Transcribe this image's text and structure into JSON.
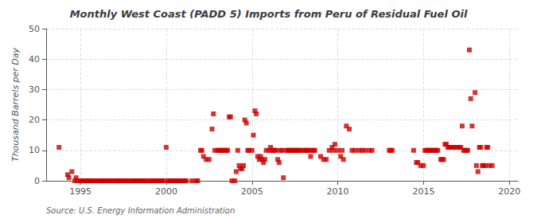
{
  "chart_data": {
    "type": "scatter",
    "title": "Monthly West Coast (PADD 5) Imports from Peru of Residual Fuel Oil",
    "ylabel": "Thousand Barrels per Day",
    "annotation": "Source: U.S. Energy Information Administration",
    "color": "#cc0000",
    "marker": "square",
    "grid": true,
    "xlim": [
      1993.0,
      2020.5
    ],
    "ylim": [
      0,
      50
    ],
    "xticks": [
      1995,
      2000,
      2005,
      2010,
      2015,
      2020
    ],
    "yticks": [
      0,
      10,
      20,
      30,
      40,
      50
    ],
    "x": [
      1993.75,
      1994.25,
      1994.33,
      1994.5,
      1994.67,
      1994.75,
      1994.83,
      1995.0,
      1995.08,
      1995.17,
      1995.25,
      1995.33,
      1995.42,
      1995.5,
      1995.58,
      1995.67,
      1995.75,
      1995.83,
      1996.0,
      1996.08,
      1996.17,
      1996.25,
      1996.33,
      1996.42,
      1996.5,
      1996.58,
      1996.67,
      1996.75,
      1996.83,
      1997.0,
      1997.08,
      1997.17,
      1997.25,
      1997.33,
      1997.42,
      1997.5,
      1997.58,
      1997.67,
      1997.75,
      1997.83,
      1998.0,
      1998.08,
      1998.17,
      1998.25,
      1998.33,
      1998.42,
      1998.5,
      1998.58,
      1998.67,
      1998.75,
      1998.83,
      1999.0,
      1999.08,
      1999.17,
      1999.25,
      1999.33,
      1999.42,
      1999.5,
      1999.58,
      1999.67,
      1999.75,
      1999.83,
      2000.0,
      2000.08,
      2000.17,
      2000.25,
      2000.33,
      2000.42,
      2000.5,
      2000.58,
      2000.67,
      2000.75,
      2000.83,
      2001.0,
      2001.08,
      2001.17,
      2001.5,
      2001.75,
      2001.83,
      2002.0,
      2002.08,
      2002.17,
      2002.33,
      2002.5,
      2002.67,
      2002.75,
      2002.83,
      2003.0,
      2003.08,
      2003.17,
      2003.25,
      2003.33,
      2003.42,
      2003.5,
      2003.58,
      2003.67,
      2003.75,
      2003.83,
      2004.0,
      2004.08,
      2004.17,
      2004.25,
      2004.33,
      2004.42,
      2004.5,
      2004.58,
      2004.67,
      2004.75,
      2004.83,
      2005.0,
      2005.08,
      2005.17,
      2005.25,
      2005.33,
      2005.42,
      2005.5,
      2005.58,
      2005.67,
      2005.75,
      2005.83,
      2006.0,
      2006.08,
      2006.17,
      2006.25,
      2006.33,
      2006.42,
      2006.5,
      2006.58,
      2006.67,
      2006.75,
      2006.83,
      2007.0,
      2007.08,
      2007.17,
      2007.25,
      2007.33,
      2007.42,
      2007.5,
      2007.58,
      2007.67,
      2007.75,
      2007.83,
      2008.0,
      2008.08,
      2008.17,
      2008.25,
      2008.33,
      2008.42,
      2008.5,
      2008.58,
      2008.67,
      2009.0,
      2009.17,
      2009.33,
      2009.5,
      2009.67,
      2009.75,
      2009.83,
      2010.0,
      2010.17,
      2010.25,
      2010.33,
      2010.5,
      2010.67,
      2010.83,
      2011.0,
      2011.25,
      2011.42,
      2011.58,
      2011.83,
      2012.0,
      2013.0,
      2013.08,
      2013.17,
      2014.42,
      2014.58,
      2014.67,
      2014.83,
      2015.0,
      2015.08,
      2015.17,
      2015.25,
      2015.33,
      2015.42,
      2015.5,
      2015.58,
      2015.67,
      2015.75,
      2015.83,
      2016.0,
      2016.08,
      2016.17,
      2016.25,
      2016.33,
      2016.42,
      2016.5,
      2016.58,
      2016.67,
      2016.75,
      2016.83,
      2017.0,
      2017.08,
      2017.17,
      2017.25,
      2017.33,
      2017.42,
      2017.5,
      2017.58,
      2017.67,
      2017.75,
      2017.83,
      2018.0,
      2018.08,
      2018.17,
      2018.25,
      2018.33,
      2018.42,
      2018.5,
      2018.58,
      2018.67,
      2018.75,
      2018.83,
      2019.0
    ],
    "values": [
      11,
      2,
      1,
      3,
      0,
      1,
      0,
      0,
      0,
      0,
      0,
      0,
      0,
      0,
      0,
      0,
      0,
      0,
      0,
      0,
      0,
      0,
      0,
      0,
      0,
      0,
      0,
      0,
      0,
      0,
      0,
      0,
      0,
      0,
      0,
      0,
      0,
      0,
      0,
      0,
      0,
      0,
      0,
      0,
      0,
      0,
      0,
      0,
      0,
      0,
      0,
      0,
      0,
      0,
      0,
      0,
      0,
      0,
      0,
      0,
      0,
      0,
      11,
      0,
      0,
      0,
      0,
      0,
      0,
      0,
      0,
      0,
      0,
      0,
      0,
      0,
      0,
      0,
      0,
      10,
      10,
      8,
      7,
      7,
      17,
      22,
      10,
      10,
      10,
      10,
      10,
      10,
      10,
      10,
      10,
      21,
      21,
      0,
      0,
      3,
      10,
      5,
      4,
      4,
      5,
      20,
      19,
      10,
      10,
      10,
      15,
      23,
      22,
      8,
      7,
      8,
      7,
      6,
      7,
      10,
      10,
      11,
      10,
      10,
      10,
      10,
      7,
      6,
      10,
      10,
      1,
      10,
      10,
      10,
      10,
      10,
      10,
      10,
      10,
      10,
      10,
      10,
      10,
      10,
      10,
      10,
      10,
      8,
      10,
      10,
      10,
      8,
      7,
      7,
      10,
      11,
      10,
      12,
      10,
      8,
      10,
      7,
      18,
      17,
      10,
      10,
      10,
      10,
      10,
      10,
      10,
      10,
      10,
      10,
      10,
      6,
      6,
      5,
      5,
      10,
      10,
      10,
      10,
      10,
      10,
      10,
      10,
      10,
      10,
      7,
      7,
      7,
      12,
      12,
      11,
      11,
      11,
      11,
      11,
      11,
      11,
      11,
      11,
      18,
      10,
      10,
      10,
      10,
      43,
      27,
      18,
      29,
      5,
      3,
      11,
      11,
      5,
      5,
      5,
      11,
      11,
      5,
      5
    ]
  }
}
